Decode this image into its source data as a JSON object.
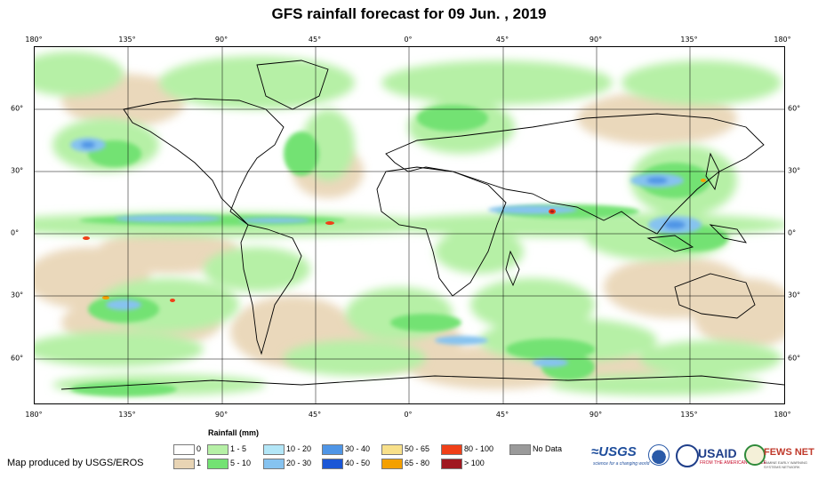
{
  "title": "GFS rainfall forecast for 09 Jun. , 2019",
  "map": {
    "type": "global rainfall forecast",
    "longitude_labels": [
      "180°",
      "135°",
      "90°",
      "45°",
      "0°",
      "45°",
      "90°",
      "135°",
      "180°"
    ],
    "latitude_labels": [
      "60°",
      "30°",
      "0°",
      "30°",
      "60°"
    ],
    "graticule": true
  },
  "legend": {
    "title": "Rainfall (mm)",
    "items": [
      {
        "label": "0",
        "color": "#ffffff"
      },
      {
        "label": "1",
        "color": "#e8d4b4"
      },
      {
        "label": "1 - 5",
        "color": "#b6f0a6"
      },
      {
        "label": "5 - 10",
        "color": "#73e273"
      },
      {
        "label": "10 - 20",
        "color": "#b3e6f7"
      },
      {
        "label": "20 - 30",
        "color": "#86c3f0"
      },
      {
        "label": "30 - 40",
        "color": "#4f95e6"
      },
      {
        "label": "40 - 50",
        "color": "#1a56d6"
      },
      {
        "label": "50 - 65",
        "color": "#f8e08a"
      },
      {
        "label": "65 - 80",
        "color": "#f4a000"
      },
      {
        "label": "80 - 100",
        "color": "#f04018"
      },
      {
        "label": "> 100",
        "color": "#a01820"
      },
      {
        "label": "No Data",
        "color": "#9a9a9a"
      }
    ]
  },
  "credit": "Map produced by USGS/EROS",
  "logos": {
    "usgs": "≈USGS",
    "usgs_tagline": "science for a changing world",
    "usaid": "USAID",
    "usaid_tagline": "FROM THE AMERICAN PEOPLE",
    "fews": "FEWS NET",
    "fews_tagline": "FAMINE EARLY WARNING SYSTEMS NETWORK"
  }
}
